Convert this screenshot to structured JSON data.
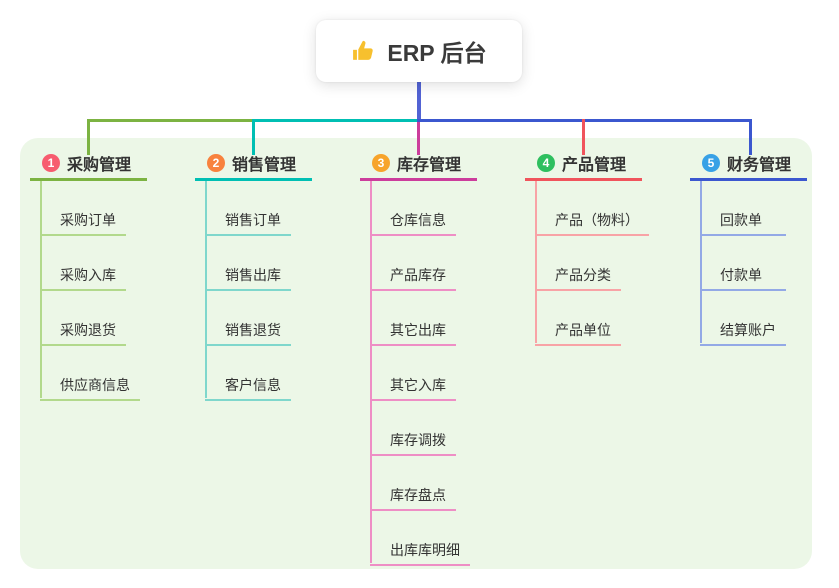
{
  "root": {
    "label": "ERP 后台",
    "icon": "thumbs-up",
    "stem_color": "#5263d4"
  },
  "canvas": {
    "background": "#ffffff",
    "panel_background": "#ecf7e7",
    "text_color": "#333333"
  },
  "branches": [
    {
      "num": "1",
      "label": "采购管理",
      "badge_color": "#f75c6f",
      "line_color": "#7cb342",
      "subline_color": "#b2d98c",
      "items": [
        "采购订单",
        "采购入库",
        "采购退货",
        "供应商信息"
      ]
    },
    {
      "num": "2",
      "label": "销售管理",
      "badge_color": "#f8823e",
      "line_color": "#00bfb3",
      "subline_color": "#7fd7cc",
      "items": [
        "销售订单",
        "销售出库",
        "销售退货",
        "客户信息"
      ]
    },
    {
      "num": "3",
      "label": "库存管理",
      "badge_color": "#f7a42b",
      "line_color": "#cc3d9c",
      "subline_color": "#ee8ec5",
      "items": [
        "仓库信息",
        "产品库存",
        "其它出库",
        "其它入库",
        "库存调拨",
        "库存盘点",
        "出库库明细"
      ]
    },
    {
      "num": "4",
      "label": "产品管理",
      "badge_color": "#2ebf5f",
      "line_color": "#f0545c",
      "subline_color": "#f8a3a6",
      "items": [
        "产品（物料）",
        "产品分类",
        "产品单位"
      ]
    },
    {
      "num": "5",
      "label": "财务管理",
      "badge_color": "#38a1e6",
      "line_color": "#3b57cf",
      "subline_color": "#93a9e6",
      "items": [
        "回款单",
        "付款单",
        "结算账户"
      ]
    }
  ]
}
